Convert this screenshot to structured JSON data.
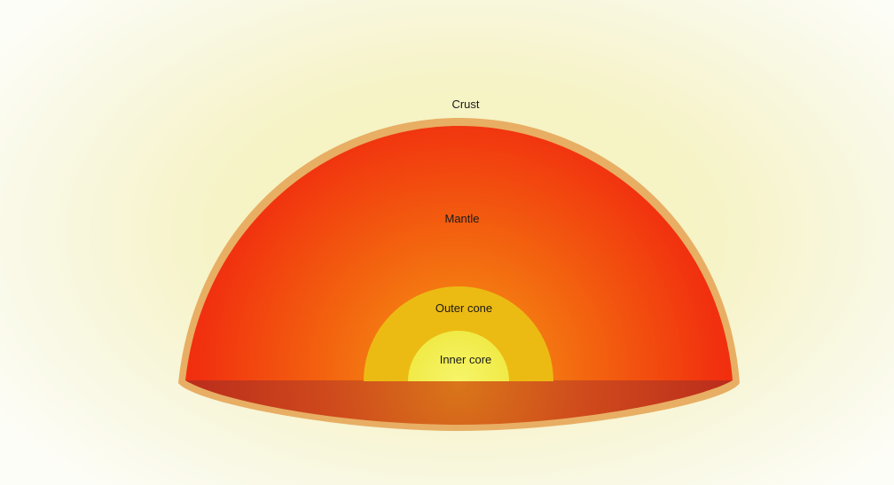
{
  "diagram": {
    "labels": {
      "crust": "Crust",
      "mantle": "Mantle",
      "outer_core": "Outer cone",
      "inner_core": "Inner core"
    },
    "colors": {
      "crust": "#e8ae64",
      "mantle_outer": "#f1260f",
      "mantle_inner": "#f28a14",
      "outer_core": "#ecbb13",
      "inner_core": "#f1ee49",
      "base_shadow": "#c8361a"
    }
  }
}
